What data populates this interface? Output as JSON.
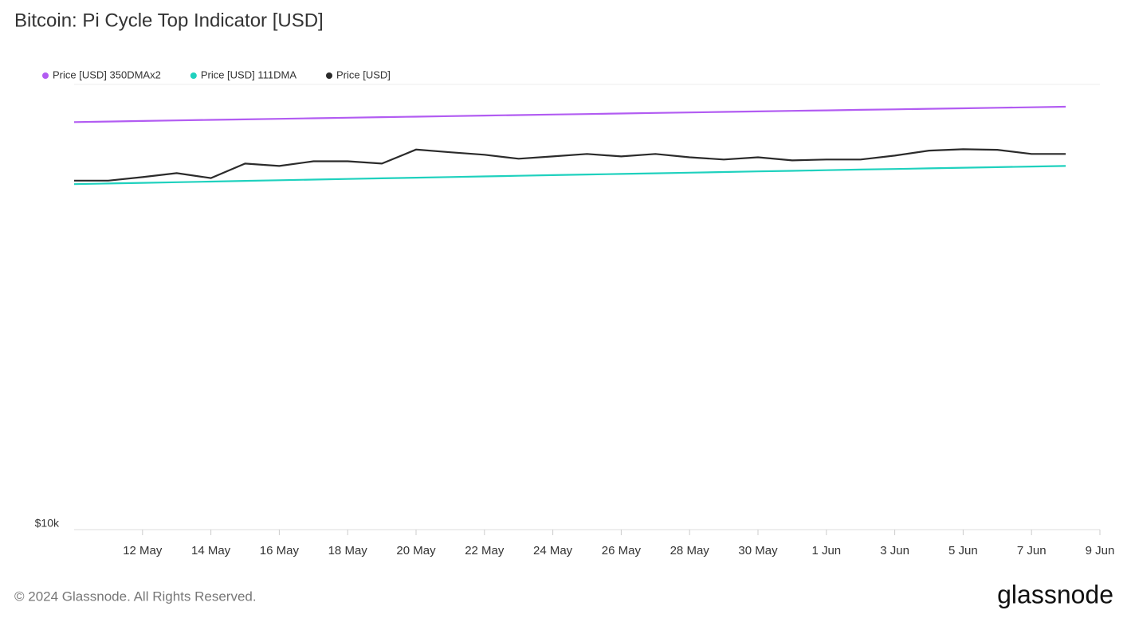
{
  "chart_data": {
    "type": "line",
    "title": "Bitcoin: Pi Cycle Top Indicator [USD]",
    "x": [
      "10 May",
      "11 May",
      "12 May",
      "13 May",
      "14 May",
      "15 May",
      "16 May",
      "17 May",
      "18 May",
      "19 May",
      "20 May",
      "21 May",
      "22 May",
      "23 May",
      "24 May",
      "25 May",
      "26 May",
      "27 May",
      "28 May",
      "29 May",
      "30 May",
      "31 May",
      "1 Jun",
      "2 Jun",
      "3 Jun",
      "4 Jun",
      "5 Jun",
      "6 Jun",
      "7 Jun",
      "8 Jun"
    ],
    "xlim": [
      "10 May",
      "9 Jun"
    ],
    "xticks": [
      "12 May",
      "14 May",
      "16 May",
      "18 May",
      "20 May",
      "22 May",
      "24 May",
      "26 May",
      "28 May",
      "30 May",
      "1 Jun",
      "3 Jun",
      "5 Jun",
      "7 Jun",
      "9 Jun"
    ],
    "ylim": [
      10000,
      100000
    ],
    "log_scale": true,
    "yticks": [
      {
        "value": 10000,
        "label": "$10k"
      }
    ],
    "series": [
      {
        "name": "Price [USD] 350DMAx2",
        "color": "#b25cf2",
        "values": [
          82300,
          82530,
          82770,
          83000,
          83240,
          83470,
          83700,
          83940,
          84170,
          84410,
          84640,
          84880,
          85110,
          85340,
          85580,
          85810,
          86050,
          86280,
          86520,
          86750,
          86980,
          87220,
          87450,
          87690,
          87920,
          88160,
          88390,
          88620,
          88860,
          89100
        ]
      },
      {
        "name": "Price [USD] 111DMA",
        "color": "#1fd1be",
        "values": [
          59700,
          59900,
          60110,
          60310,
          60510,
          60720,
          60920,
          61120,
          61330,
          61530,
          61730,
          61940,
          62140,
          62340,
          62550,
          62750,
          62950,
          63160,
          63360,
          63560,
          63770,
          63970,
          64170,
          64380,
          64580,
          64780,
          64990,
          65190,
          65390,
          65600
        ]
      },
      {
        "name": "Price [USD]",
        "color": "#2b2b2b",
        "values": [
          60800,
          60800,
          61900,
          63200,
          61600,
          66400,
          65600,
          67200,
          67200,
          66400,
          71400,
          70400,
          69500,
          68100,
          68900,
          69800,
          68900,
          69800,
          68600,
          67800,
          68600,
          67500,
          67800,
          67800,
          69200,
          71000,
          71500,
          71300,
          69800,
          69800
        ]
      }
    ]
  },
  "footer": {
    "copyright": "© 2024 Glassnode. All Rights Reserved.",
    "brand": "glassnode"
  }
}
